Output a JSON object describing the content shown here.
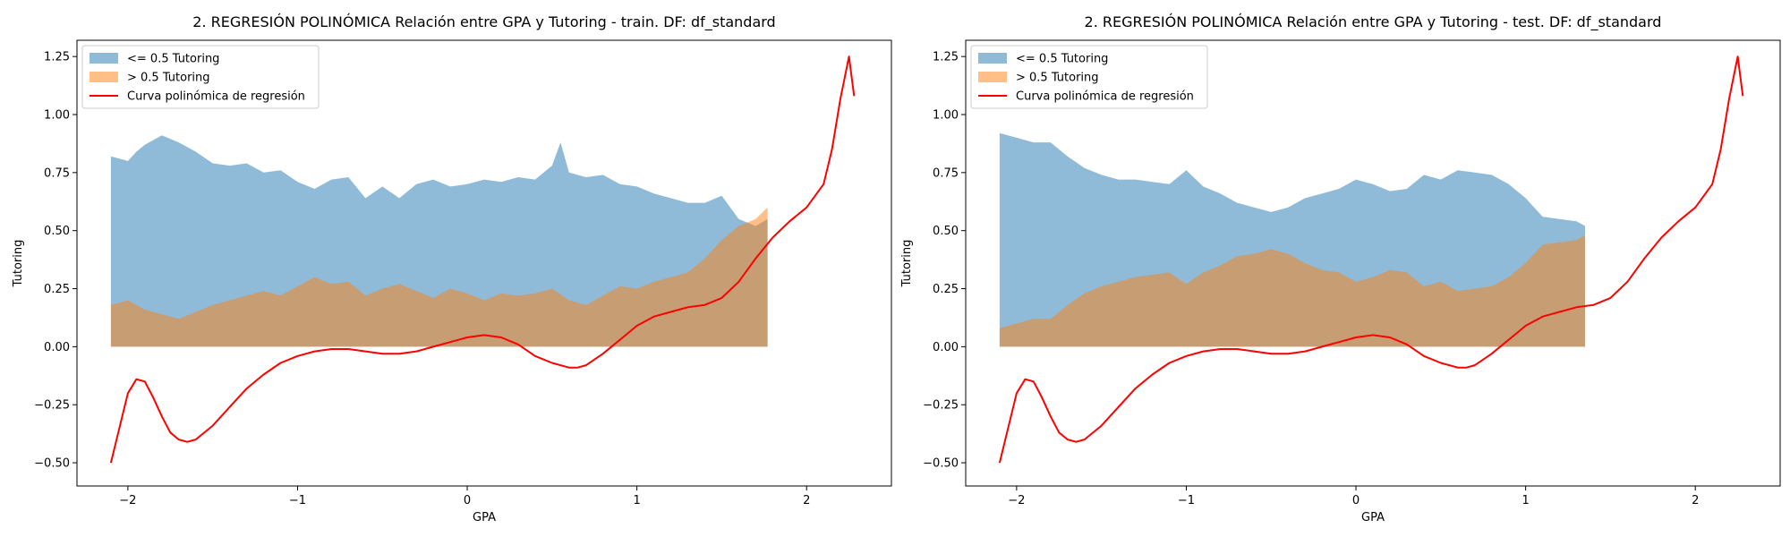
{
  "chart_data": [
    {
      "type": "area",
      "title": "2. REGRESIÓN POLINÓMICA Relación entre GPA y Tutoring - train. DF: df_standard",
      "xlabel": "GPA",
      "ylabel": "Tutoring",
      "xlim": [
        -2.3,
        2.5
      ],
      "ylim": [
        -0.6,
        1.32
      ],
      "xticks": [
        -2,
        -1,
        0,
        1,
        2
      ],
      "xtick_labels": [
        "−2",
        "−1",
        "0",
        "1",
        "2"
      ],
      "yticks": [
        -0.5,
        -0.25,
        0.0,
        0.25,
        0.5,
        0.75,
        1.0,
        1.25
      ],
      "ytick_labels": [
        "−0.50",
        "−0.25",
        "0.00",
        "0.25",
        "0.50",
        "0.75",
        "1.00",
        "1.25"
      ],
      "legend_position": "upper-left",
      "series": [
        {
          "name": "<= 0.5 Tutoring",
          "kind": "area",
          "color": "#1f77b4",
          "x": [
            -2.1,
            -2.0,
            -1.95,
            -1.9,
            -1.8,
            -1.7,
            -1.6,
            -1.5,
            -1.4,
            -1.3,
            -1.2,
            -1.1,
            -1.0,
            -0.9,
            -0.8,
            -0.7,
            -0.6,
            -0.5,
            -0.4,
            -0.3,
            -0.2,
            -0.1,
            0.0,
            0.1,
            0.2,
            0.3,
            0.4,
            0.5,
            0.55,
            0.6,
            0.7,
            0.8,
            0.9,
            1.0,
            1.1,
            1.2,
            1.3,
            1.4,
            1.5,
            1.6,
            1.7,
            1.77
          ],
          "y": [
            0.82,
            0.8,
            0.84,
            0.87,
            0.91,
            0.88,
            0.84,
            0.79,
            0.78,
            0.79,
            0.75,
            0.76,
            0.71,
            0.68,
            0.72,
            0.73,
            0.64,
            0.69,
            0.64,
            0.7,
            0.72,
            0.69,
            0.7,
            0.72,
            0.71,
            0.73,
            0.72,
            0.78,
            0.88,
            0.75,
            0.73,
            0.74,
            0.7,
            0.69,
            0.66,
            0.64,
            0.62,
            0.62,
            0.65,
            0.55,
            0.52,
            0.55
          ]
        },
        {
          "name": "> 0.5 Tutoring",
          "kind": "area",
          "color": "#ff7f0e",
          "x": [
            -2.1,
            -2.0,
            -1.9,
            -1.8,
            -1.7,
            -1.6,
            -1.5,
            -1.4,
            -1.3,
            -1.2,
            -1.1,
            -1.0,
            -0.9,
            -0.8,
            -0.7,
            -0.6,
            -0.5,
            -0.4,
            -0.3,
            -0.2,
            -0.1,
            0.0,
            0.1,
            0.2,
            0.3,
            0.4,
            0.5,
            0.6,
            0.7,
            0.8,
            0.9,
            1.0,
            1.1,
            1.2,
            1.3,
            1.4,
            1.5,
            1.6,
            1.7,
            1.77
          ],
          "y": [
            0.18,
            0.2,
            0.16,
            0.14,
            0.12,
            0.15,
            0.18,
            0.2,
            0.22,
            0.24,
            0.22,
            0.26,
            0.3,
            0.27,
            0.28,
            0.22,
            0.25,
            0.27,
            0.24,
            0.21,
            0.25,
            0.23,
            0.2,
            0.23,
            0.22,
            0.23,
            0.25,
            0.2,
            0.18,
            0.22,
            0.26,
            0.25,
            0.28,
            0.3,
            0.32,
            0.38,
            0.46,
            0.52,
            0.55,
            0.6
          ]
        },
        {
          "name": "Curva polinómica de regresión",
          "kind": "line",
          "color": "#ff0000",
          "x": [
            -2.1,
            -2.05,
            -2.0,
            -1.95,
            -1.9,
            -1.85,
            -1.8,
            -1.75,
            -1.7,
            -1.65,
            -1.6,
            -1.5,
            -1.4,
            -1.3,
            -1.2,
            -1.1,
            -1.0,
            -0.9,
            -0.8,
            -0.7,
            -0.6,
            -0.5,
            -0.4,
            -0.3,
            -0.2,
            -0.1,
            0.0,
            0.1,
            0.2,
            0.3,
            0.4,
            0.5,
            0.6,
            0.65,
            0.7,
            0.8,
            0.9,
            1.0,
            1.1,
            1.2,
            1.3,
            1.4,
            1.5,
            1.6,
            1.7,
            1.8,
            1.9,
            2.0,
            2.1,
            2.15,
            2.2,
            2.25,
            2.28
          ],
          "y": [
            -0.5,
            -0.35,
            -0.2,
            -0.14,
            -0.15,
            -0.22,
            -0.3,
            -0.37,
            -0.4,
            -0.41,
            -0.4,
            -0.34,
            -0.26,
            -0.18,
            -0.12,
            -0.07,
            -0.04,
            -0.02,
            -0.01,
            -0.01,
            -0.02,
            -0.03,
            -0.03,
            -0.02,
            0.0,
            0.02,
            0.04,
            0.05,
            0.04,
            0.01,
            -0.04,
            -0.07,
            -0.09,
            -0.09,
            -0.08,
            -0.03,
            0.03,
            0.09,
            0.13,
            0.15,
            0.17,
            0.18,
            0.21,
            0.28,
            0.38,
            0.47,
            0.54,
            0.6,
            0.7,
            0.85,
            1.07,
            1.25,
            1.08
          ]
        }
      ]
    },
    {
      "type": "area",
      "title": "2. REGRESIÓN POLINÓMICA Relación entre GPA y Tutoring - test. DF: df_standard",
      "xlabel": "GPA",
      "ylabel": "Tutoring",
      "xlim": [
        -2.3,
        2.5
      ],
      "ylim": [
        -0.6,
        1.32
      ],
      "xticks": [
        -2,
        -1,
        0,
        1,
        2
      ],
      "xtick_labels": [
        "−2",
        "−1",
        "0",
        "1",
        "2"
      ],
      "yticks": [
        -0.5,
        -0.25,
        0.0,
        0.25,
        0.5,
        0.75,
        1.0,
        1.25
      ],
      "ytick_labels": [
        "−0.50",
        "−0.25",
        "0.00",
        "0.25",
        "0.50",
        "0.75",
        "1.00",
        "1.25"
      ],
      "legend_position": "upper-left",
      "series": [
        {
          "name": "<= 0.5 Tutoring",
          "kind": "area",
          "color": "#1f77b4",
          "x": [
            -2.1,
            -2.0,
            -1.9,
            -1.8,
            -1.7,
            -1.6,
            -1.5,
            -1.4,
            -1.3,
            -1.2,
            -1.1,
            -1.0,
            -0.9,
            -0.8,
            -0.7,
            -0.6,
            -0.5,
            -0.4,
            -0.3,
            -0.2,
            -0.1,
            0.0,
            0.1,
            0.2,
            0.3,
            0.4,
            0.5,
            0.6,
            0.7,
            0.8,
            0.9,
            1.0,
            1.1,
            1.2,
            1.3,
            1.35
          ],
          "y": [
            0.92,
            0.9,
            0.88,
            0.88,
            0.82,
            0.77,
            0.74,
            0.72,
            0.72,
            0.71,
            0.7,
            0.76,
            0.69,
            0.66,
            0.62,
            0.6,
            0.58,
            0.6,
            0.64,
            0.66,
            0.68,
            0.72,
            0.7,
            0.67,
            0.68,
            0.74,
            0.72,
            0.76,
            0.75,
            0.74,
            0.7,
            0.64,
            0.56,
            0.55,
            0.54,
            0.52
          ]
        },
        {
          "name": "> 0.5 Tutoring",
          "kind": "area",
          "color": "#ff7f0e",
          "x": [
            -2.1,
            -2.0,
            -1.9,
            -1.8,
            -1.7,
            -1.6,
            -1.5,
            -1.4,
            -1.3,
            -1.2,
            -1.1,
            -1.0,
            -0.9,
            -0.8,
            -0.7,
            -0.6,
            -0.5,
            -0.4,
            -0.3,
            -0.2,
            -0.1,
            0.0,
            0.1,
            0.2,
            0.3,
            0.4,
            0.5,
            0.6,
            0.7,
            0.8,
            0.9,
            1.0,
            1.1,
            1.2,
            1.3,
            1.35
          ],
          "y": [
            0.08,
            0.1,
            0.12,
            0.12,
            0.18,
            0.23,
            0.26,
            0.28,
            0.3,
            0.31,
            0.32,
            0.27,
            0.32,
            0.35,
            0.39,
            0.4,
            0.42,
            0.4,
            0.36,
            0.33,
            0.32,
            0.28,
            0.3,
            0.33,
            0.32,
            0.26,
            0.28,
            0.24,
            0.25,
            0.26,
            0.3,
            0.36,
            0.44,
            0.45,
            0.46,
            0.48
          ]
        },
        {
          "name": "Curva polinómica de regresión",
          "kind": "line",
          "color": "#ff0000",
          "x": [
            -2.1,
            -2.05,
            -2.0,
            -1.95,
            -1.9,
            -1.85,
            -1.8,
            -1.75,
            -1.7,
            -1.65,
            -1.6,
            -1.5,
            -1.4,
            -1.3,
            -1.2,
            -1.1,
            -1.0,
            -0.9,
            -0.8,
            -0.7,
            -0.6,
            -0.5,
            -0.4,
            -0.3,
            -0.2,
            -0.1,
            0.0,
            0.1,
            0.2,
            0.3,
            0.4,
            0.5,
            0.6,
            0.65,
            0.7,
            0.8,
            0.9,
            1.0,
            1.1,
            1.2,
            1.3,
            1.4,
            1.5,
            1.6,
            1.7,
            1.8,
            1.9,
            2.0,
            2.1,
            2.15,
            2.2,
            2.25,
            2.28
          ],
          "y": [
            -0.5,
            -0.35,
            -0.2,
            -0.14,
            -0.15,
            -0.22,
            -0.3,
            -0.37,
            -0.4,
            -0.41,
            -0.4,
            -0.34,
            -0.26,
            -0.18,
            -0.12,
            -0.07,
            -0.04,
            -0.02,
            -0.01,
            -0.01,
            -0.02,
            -0.03,
            -0.03,
            -0.02,
            0.0,
            0.02,
            0.04,
            0.05,
            0.04,
            0.01,
            -0.04,
            -0.07,
            -0.09,
            -0.09,
            -0.08,
            -0.03,
            0.03,
            0.09,
            0.13,
            0.15,
            0.17,
            0.18,
            0.21,
            0.28,
            0.38,
            0.47,
            0.54,
            0.6,
            0.7,
            0.85,
            1.07,
            1.25,
            1.08
          ]
        }
      ]
    }
  ]
}
